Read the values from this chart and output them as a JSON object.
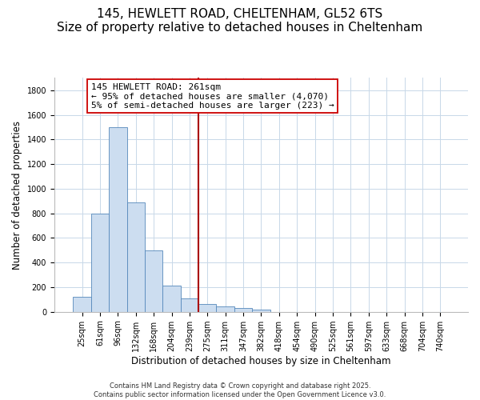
{
  "title": "145, HEWLETT ROAD, CHELTENHAM, GL52 6TS",
  "subtitle": "Size of property relative to detached houses in Cheltenham",
  "xlabel": "Distribution of detached houses by size in Cheltenham",
  "ylabel": "Number of detached properties",
  "bar_labels": [
    "25sqm",
    "61sqm",
    "96sqm",
    "132sqm",
    "168sqm",
    "204sqm",
    "239sqm",
    "275sqm",
    "311sqm",
    "347sqm",
    "382sqm",
    "418sqm",
    "454sqm",
    "490sqm",
    "525sqm",
    "561sqm",
    "597sqm",
    "633sqm",
    "668sqm",
    "704sqm",
    "740sqm"
  ],
  "bar_values": [
    120,
    800,
    1500,
    890,
    500,
    210,
    110,
    65,
    45,
    30,
    20,
    0,
    0,
    0,
    0,
    0,
    0,
    0,
    0,
    0,
    0
  ],
  "bar_color": "#ccddf0",
  "bar_edge_color": "#5588bb",
  "vline_color": "#aa0000",
  "ylim": [
    0,
    1900
  ],
  "yticks": [
    0,
    200,
    400,
    600,
    800,
    1000,
    1200,
    1400,
    1600,
    1800
  ],
  "annotation_title": "145 HEWLETT ROAD: 261sqm",
  "annotation_line1": "← 95% of detached houses are smaller (4,070)",
  "annotation_line2": "5% of semi-detached houses are larger (223) →",
  "footnote1": "Contains HM Land Registry data © Crown copyright and database right 2025.",
  "footnote2": "Contains public sector information licensed under the Open Government Licence v3.0.",
  "bg_color": "#ffffff",
  "grid_color": "#c8d8e8",
  "title_fontsize": 11,
  "subtitle_fontsize": 9.5,
  "axis_label_fontsize": 8.5,
  "tick_fontsize": 7,
  "annotation_fontsize": 8,
  "footnote_fontsize": 6
}
